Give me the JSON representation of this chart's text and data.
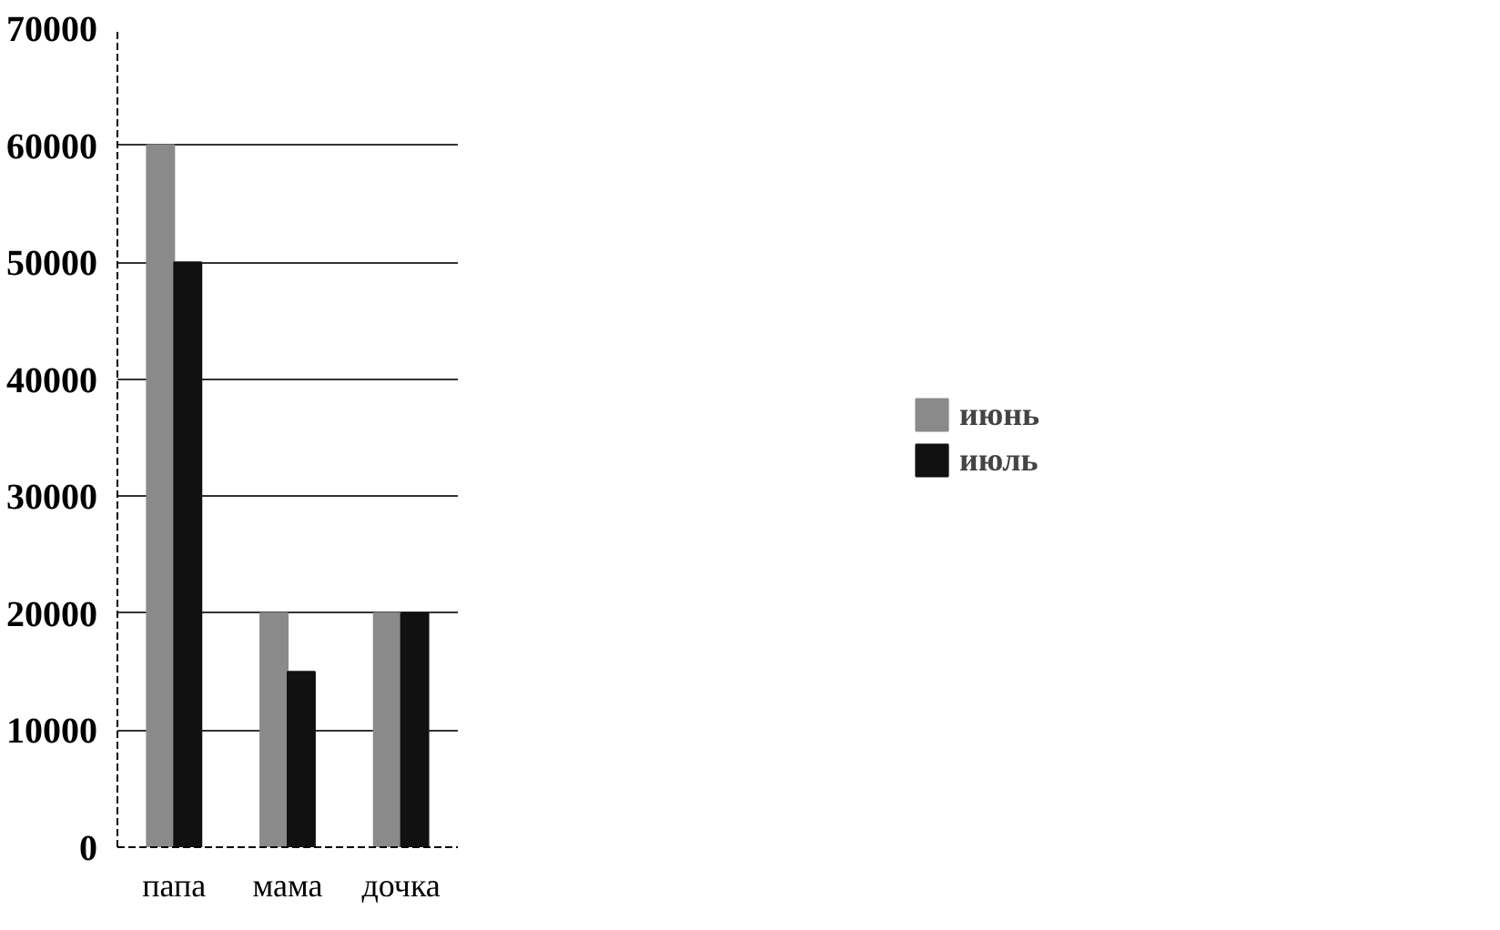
{
  "chart_data": {
    "type": "bar",
    "categories": [
      "папа",
      "мама",
      "дочка"
    ],
    "series": [
      {
        "name": "июнь",
        "color": "#8a8a8a",
        "values": [
          60000,
          20000,
          20000
        ]
      },
      {
        "name": "июль",
        "color": "#111111",
        "values": [
          50000,
          15000,
          20000
        ]
      }
    ],
    "ylim": [
      0,
      70000
    ],
    "yticks": [
      0,
      10000,
      20000,
      30000,
      40000,
      50000,
      60000,
      70000
    ],
    "grid": "y",
    "legend": "right"
  }
}
